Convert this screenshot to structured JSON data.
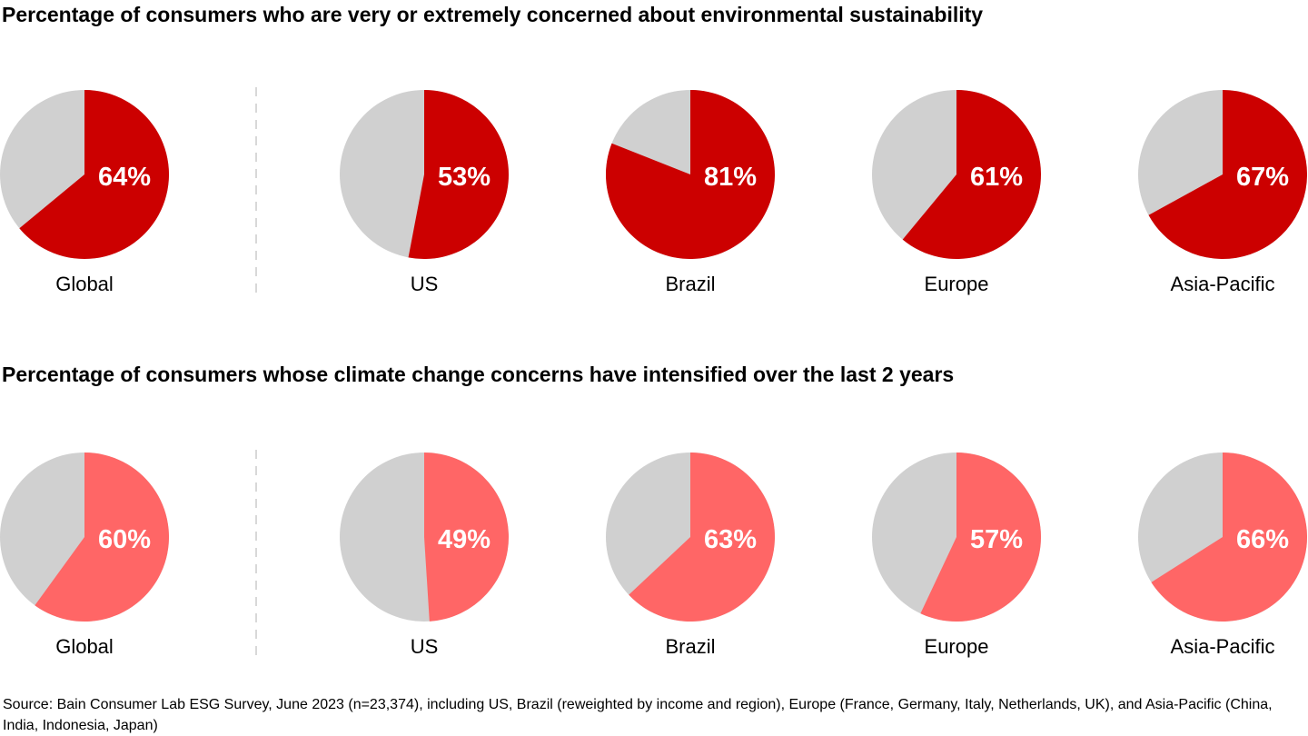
{
  "chart_data": [
    {
      "type": "pie",
      "title": "Percentage of consumers who are very or extremely concerned about environmental sustainability",
      "categories": [
        "Global",
        "US",
        "Brazil",
        "Europe",
        "Asia-Pacific"
      ],
      "values": [
        64,
        53,
        81,
        61,
        67
      ],
      "labels": [
        "64%",
        "53%",
        "81%",
        "61%",
        "67%"
      ],
      "color": "#cc0000",
      "remainder_color": "#d0d0d0"
    },
    {
      "type": "pie",
      "title": "Percentage of consumers whose climate change concerns have intensified over the last 2 years",
      "categories": [
        "Global",
        "US",
        "Brazil",
        "Europe",
        "Asia-Pacific"
      ],
      "values": [
        60,
        49,
        63,
        57,
        66
      ],
      "labels": [
        "60%",
        "49%",
        "63%",
        "57%",
        "66%"
      ],
      "color": "#ff6666",
      "remainder_color": "#d0d0d0"
    }
  ],
  "source": "Source: Bain Consumer Lab ESG Survey, June 2023 (n=23,374), including US, Brazil (reweighted by income and region), Europe (France, Germany, Italy, Netherlands, UK), and Asia-Pacific (China, India, Indonesia, Japan)"
}
